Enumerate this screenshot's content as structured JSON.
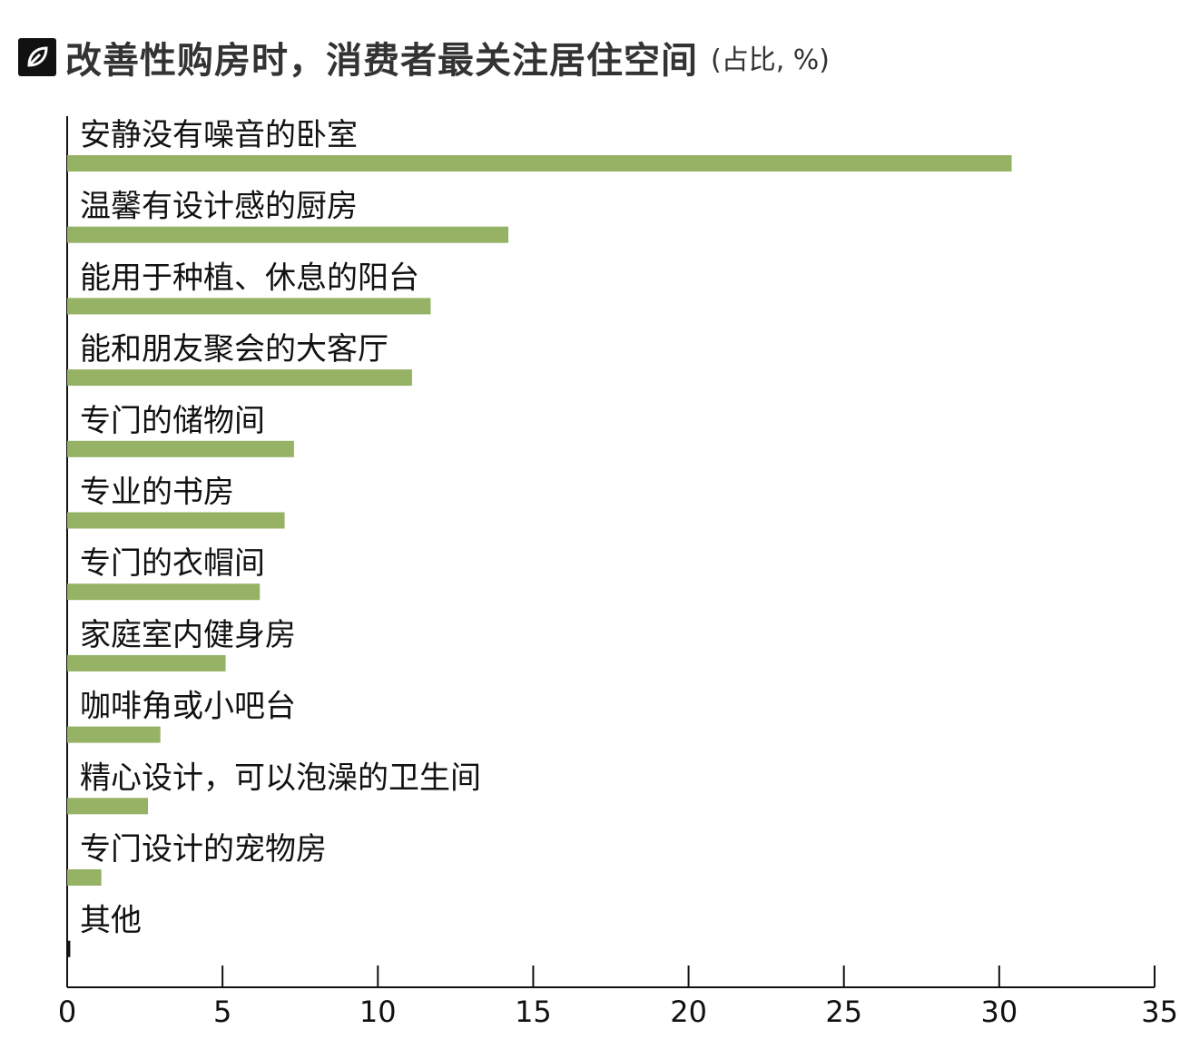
{
  "header": {
    "logo_icon": "leaf-logo-icon",
    "title": "改善性购房时，消费者最关注居住空间",
    "subtitle": "(占比, %)"
  },
  "chart_data": {
    "type": "bar",
    "orientation": "horizontal",
    "title": "改善性购房时，消费者最关注居住空间",
    "subtitle": "(占比, %)",
    "xlabel": "",
    "ylabel": "",
    "xlim": [
      0,
      35
    ],
    "ticks": [
      0,
      5,
      10,
      15,
      20,
      25,
      30,
      35
    ],
    "grid": false,
    "bar_color": "#96b264",
    "categories": [
      "安静没有噪音的卧室",
      "温馨有设计感的厨房",
      "能用于种植、休息的阳台",
      "能和朋友聚会的大客厅",
      "专门的储物间",
      "专业的书房",
      "专门的衣帽间",
      "家庭室内健身房",
      "咖啡角或小吧台",
      "精心设计，可以泡澡的卫生间",
      "专门设计的宠物房",
      "其他"
    ],
    "values": [
      30.4,
      14.2,
      11.7,
      11.1,
      7.3,
      7.0,
      6.2,
      5.1,
      3.0,
      2.6,
      1.1,
      0.1
    ]
  }
}
